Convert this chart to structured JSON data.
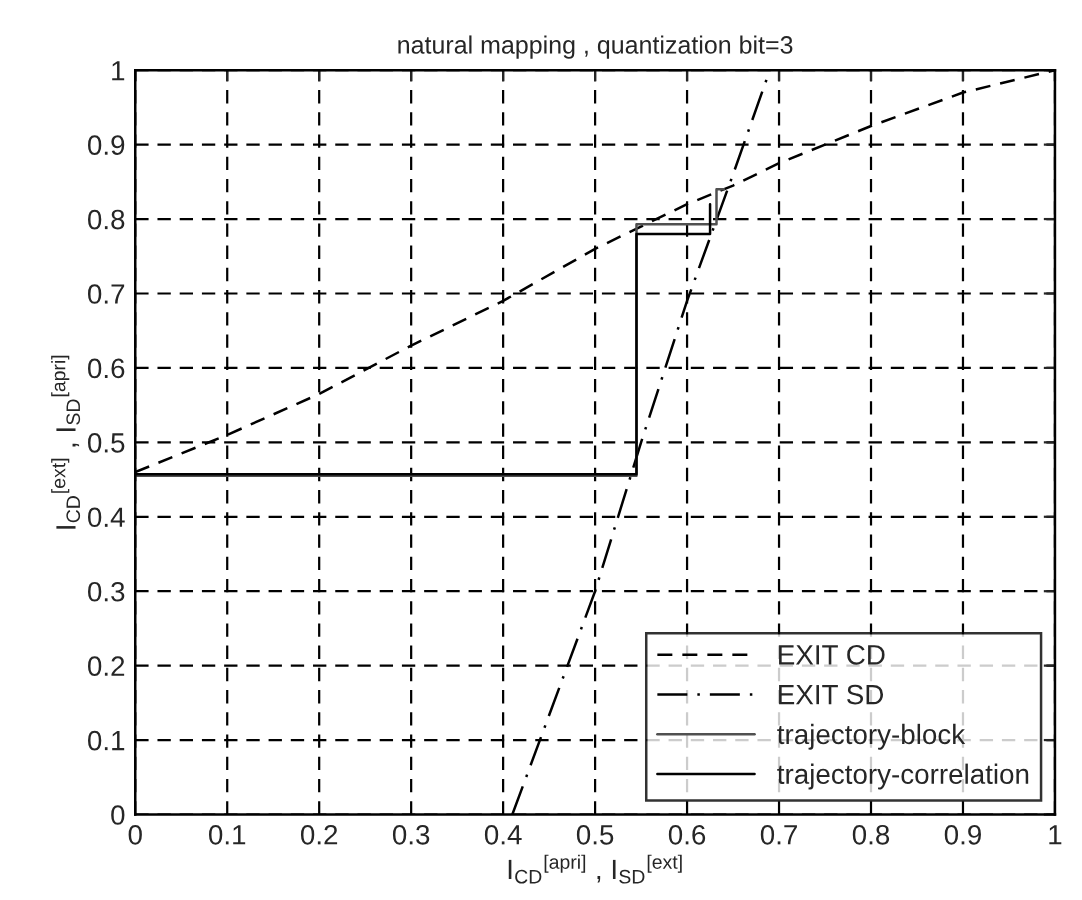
{
  "chart_data": {
    "type": "line",
    "title": "natural mapping , quantization bit=3",
    "xlabel": "I$_{CD}$$^{[apri]}$ , I$_{SD}$$^{[ext]}$",
    "ylabel": "I$_{CD}$$^{[ext]}$ , I$_{SD}$$^{[apri]}$",
    "xlim": [
      0,
      1
    ],
    "ylim": [
      0,
      1
    ],
    "xticks": [
      0,
      0.1,
      0.2,
      0.3,
      0.4,
      0.5,
      0.6,
      0.7,
      0.8,
      0.9,
      1
    ],
    "yticks": [
      0,
      0.1,
      0.2,
      0.3,
      0.4,
      0.5,
      0.6,
      0.7,
      0.8,
      0.9,
      1
    ],
    "grid": true,
    "legend": "bottom right",
    "series": [
      {
        "name": "EXIT CD",
        "color": "#000000",
        "line_style": "dashed",
        "x": [
          0,
          0.1,
          0.2,
          0.3,
          0.4,
          0.5,
          0.6,
          0.65,
          0.7,
          0.8,
          0.9,
          1.0
        ],
        "values": [
          0.46,
          0.51,
          0.565,
          0.63,
          0.69,
          0.76,
          0.82,
          0.845,
          0.875,
          0.925,
          0.97,
          1.0
        ]
      },
      {
        "name": "EXIT SD",
        "color": "#000000",
        "line_style": "dashdot",
        "x": [
          0.41,
          0.5,
          0.55,
          0.6,
          0.65,
          0.69
        ],
        "values": [
          0,
          0.3,
          0.5,
          0.69,
          0.86,
          1.0
        ]
      },
      {
        "name": "trajectory-block",
        "color": "#505050",
        "line_style": "solid",
        "x": [
          0,
          0.545,
          0.545,
          0.632,
          0.632,
          0.64
        ],
        "values": [
          0.455,
          0.455,
          0.793,
          0.793,
          0.84,
          0.84
        ]
      },
      {
        "name": "trajectory-correlation",
        "color": "#000000",
        "line_style": "solid",
        "x": [
          0,
          0.545,
          0.545,
          0.625,
          0.625
        ],
        "values": [
          0.457,
          0.457,
          0.78,
          0.78,
          0.82
        ]
      }
    ]
  }
}
